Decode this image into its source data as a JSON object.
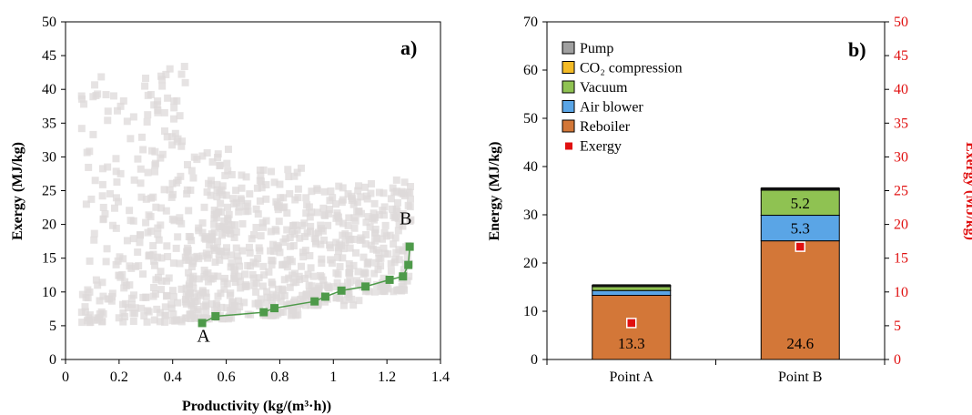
{
  "chart_data": [
    {
      "type": "scatter",
      "panel_label": "a)",
      "xlabel": "Productivity (kg/(m³·h))",
      "ylabel": "Exergy (MJ/kg)",
      "xlim": [
        0,
        1.4
      ],
      "ylim": [
        0,
        50
      ],
      "x_ticks": [
        "0",
        "0.2",
        "0.4",
        "0.6",
        "0.8",
        "1",
        "1.2",
        "1.4"
      ],
      "y_ticks": [
        "0",
        "5",
        "10",
        "15",
        "20",
        "25",
        "30",
        "35",
        "40",
        "45",
        "50"
      ],
      "grid": false,
      "colors": {
        "background_points": "#dedada",
        "frontier": "#4e9a4a"
      },
      "pareto_front": {
        "x": [
          0.51,
          0.56,
          0.74,
          0.78,
          0.93,
          0.97,
          1.03,
          1.12,
          1.21,
          1.26,
          1.28,
          1.285
        ],
        "y": [
          5.4,
          6.4,
          7.0,
          7.6,
          8.6,
          9.3,
          10.2,
          10.8,
          11.8,
          12.3,
          14.0,
          16.7
        ]
      },
      "annotations": [
        {
          "text": "A",
          "x": 0.515,
          "y": 2.6
        },
        {
          "text": "B",
          "x": 1.27,
          "y": 20.0
        }
      ]
    },
    {
      "type": "bar",
      "stacked": true,
      "panel_label": "b)",
      "categories": [
        "Point A",
        "Point B"
      ],
      "ylabel": "Energy (MJ/kg)",
      "ylabel_right": "Exergy (MJ/kg)",
      "ylim": [
        0,
        70
      ],
      "ylim_right": [
        0,
        50
      ],
      "y_ticks": [
        "0",
        "10",
        "20",
        "30",
        "40",
        "50",
        "60",
        "70"
      ],
      "y_ticks_right": [
        "0",
        "5",
        "10",
        "15",
        "20",
        "25",
        "30",
        "35",
        "40",
        "45",
        "50"
      ],
      "legend_position": "top-left",
      "series": [
        {
          "name": "Reboiler",
          "values": [
            13.3,
            24.6
          ],
          "color": "#d37738",
          "labels": [
            "13.3",
            "24.6"
          ]
        },
        {
          "name": "Air blower",
          "values": [
            1.0,
            5.3
          ],
          "color": "#5aa5e6",
          "labels": [
            "",
            "5.3"
          ]
        },
        {
          "name": "Vacuum",
          "values": [
            0.8,
            5.2
          ],
          "color": "#8fc252",
          "labels": [
            "",
            "5.2"
          ]
        },
        {
          "name": "CO₂ compression",
          "values": [
            0.2,
            0.3
          ],
          "color": "#f4bb26",
          "labels": [
            "",
            ""
          ]
        },
        {
          "name": "Pump",
          "values": [
            0.1,
            0.1
          ],
          "color": "#a0a0a0",
          "labels": [
            "",
            ""
          ]
        }
      ],
      "exergy": {
        "name": "Exergy",
        "values": [
          5.4,
          16.7
        ],
        "color": "#e01010"
      },
      "legend_order": [
        "Pump",
        "CO₂ compression",
        "Vacuum",
        "Air blower",
        "Reboiler",
        "Exergy"
      ]
    }
  ]
}
